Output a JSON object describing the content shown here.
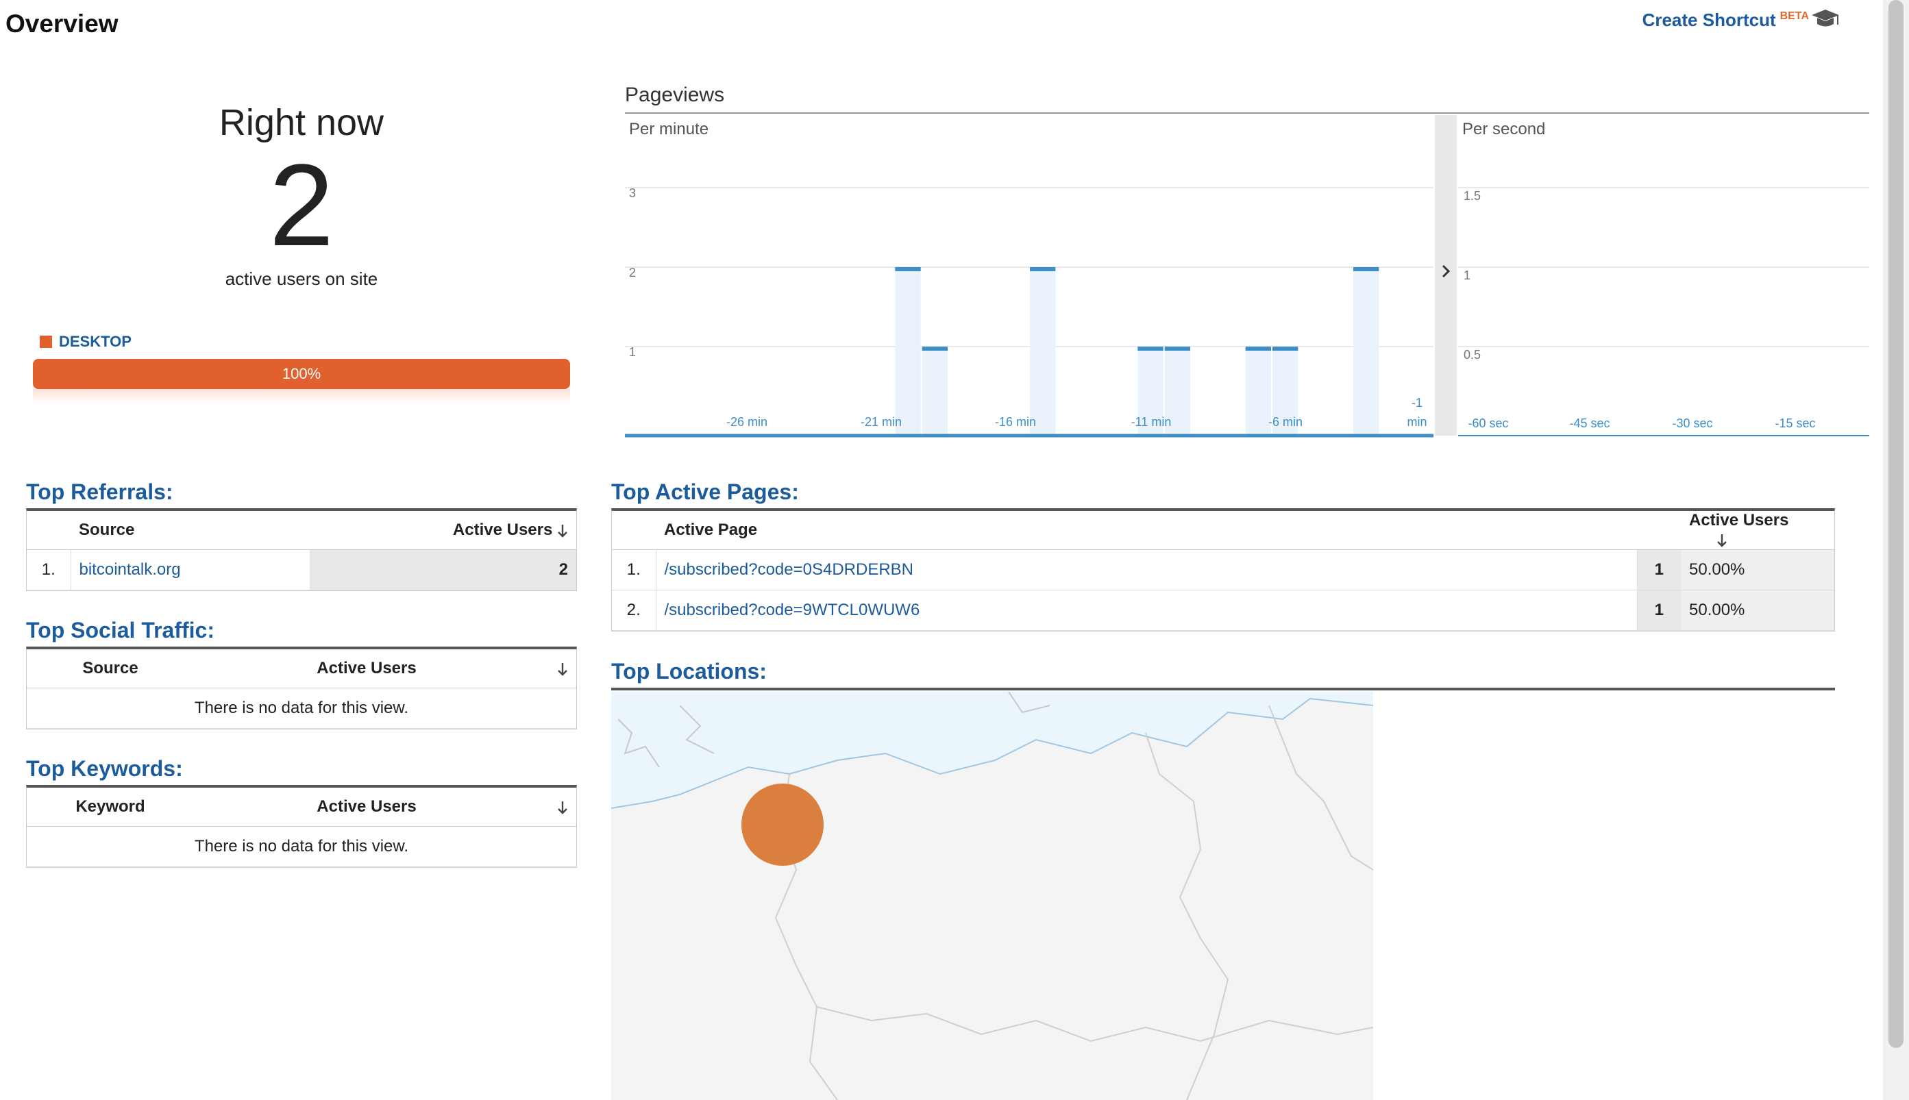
{
  "header": {
    "title": "Overview",
    "create_shortcut": "Create Shortcut",
    "beta": "BETA",
    "help_icon": "graduation-cap-icon"
  },
  "right_now": {
    "title": "Right now",
    "count": "2",
    "label": "active users on site",
    "device_legend": "DESKTOP",
    "device_percent": "100%",
    "device_fraction": 1.0,
    "device_color": "#e0612e"
  },
  "pageviews": {
    "title": "Pageviews",
    "per_minute_label": "Per minute",
    "per_second_label": "Per second",
    "chart_data": {
      "type": "bar",
      "per_minute": {
        "y_ticks": [
          "1",
          "2",
          "3"
        ],
        "ylim": [
          0,
          3
        ],
        "x_ticks": [
          "-26 min",
          "-21 min",
          "-16 min",
          "-11 min",
          "-6 min",
          "-1",
          "min"
        ],
        "values": [
          0,
          0,
          0,
          0,
          0,
          0,
          0,
          0,
          0,
          0,
          2,
          1,
          0,
          0,
          0,
          2,
          0,
          0,
          0,
          1,
          1,
          0,
          0,
          1,
          1,
          0,
          0,
          2,
          0,
          0
        ]
      },
      "per_second": {
        "y_ticks": [
          "0.5",
          "1",
          "1.5"
        ],
        "ylim": [
          0,
          1.5
        ],
        "x_ticks": [
          "-60 sec",
          "-45 sec",
          "-30 sec",
          "-15 sec"
        ]
      },
      "bar_color": "#3d8fc6"
    }
  },
  "top_referrals": {
    "title": "Top Referrals:",
    "col_source": "Source",
    "col_users": "Active Users",
    "rows": [
      {
        "rank": "1.",
        "source": "bitcointalk.org",
        "users": "2"
      }
    ]
  },
  "top_social": {
    "title": "Top Social Traffic:",
    "col_source": "Source",
    "col_users": "Active Users",
    "empty": "There is no data for this view."
  },
  "top_keywords": {
    "title": "Top Keywords:",
    "col_keyword": "Keyword",
    "col_users": "Active Users",
    "empty": "There is no data for this view."
  },
  "top_pages": {
    "title": "Top Active Pages:",
    "col_page": "Active Page",
    "col_users": "Active Users",
    "rows": [
      {
        "rank": "1.",
        "page": "/subscribed?code=0S4DRDERBN",
        "users": "1",
        "pct": "50.00%"
      },
      {
        "rank": "2.",
        "page": "/subscribed?code=9WTCL0WUW6",
        "users": "1",
        "pct": "50.00%"
      }
    ]
  },
  "top_locations": {
    "title": "Top Locations:",
    "marker_color": "#db7f3f"
  }
}
